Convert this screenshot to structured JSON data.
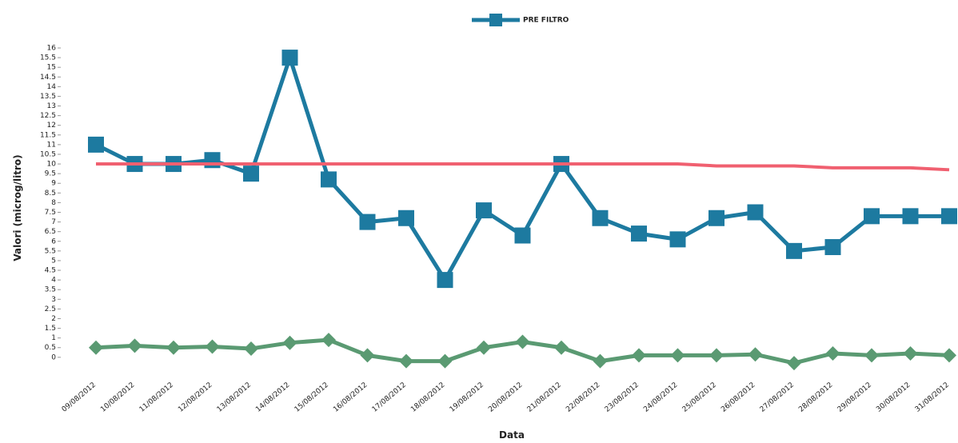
{
  "chart_data": {
    "type": "line",
    "x_label": "Data",
    "y_label": "Valori (microg/litro)",
    "categories": [
      "09/08/2012",
      "10/08/2012",
      "11/08/2012",
      "12/08/2012",
      "13/08/2012",
      "14/08/2012",
      "15/08/2012",
      "16/08/2012",
      "17/08/2012",
      "18/08/2012",
      "19/08/2012",
      "20/08/2012",
      "21/08/2012",
      "22/08/2012",
      "23/08/2012",
      "24/08/2012",
      "25/08/2012",
      "26/08/2012",
      "27/08/2012",
      "28/08/2012",
      "29/08/2012",
      "30/08/2012",
      "31/08/2012"
    ],
    "series": [
      {
        "name": "PRE FILTRO",
        "color": "#1d7aa0",
        "marker": "square",
        "values": [
          11,
          10,
          10,
          10.2,
          9.5,
          15.5,
          9.2,
          7,
          7.2,
          4,
          7.6,
          6.3,
          10,
          7.2,
          6.4,
          6.1,
          7.2,
          7.5,
          5.5,
          5.7,
          7.3,
          7.3,
          7.3
        ]
      },
      {
        "color": "#f06070",
        "marker": "none",
        "values": [
          10,
          10,
          10,
          10,
          10,
          10,
          10,
          10,
          10,
          10,
          10,
          10,
          10,
          10,
          10,
          10,
          9.9,
          9.9,
          9.9,
          9.8,
          9.8,
          9.8,
          9.7
        ]
      },
      {
        "color": "#5a9a72",
        "marker": "diamond",
        "values": [
          0.5,
          0.6,
          0.5,
          0.55,
          0.45,
          0.75,
          0.9,
          0.1,
          -0.2,
          -0.2,
          0.5,
          0.8,
          0.5,
          -0.2,
          0.1,
          0.1,
          0.1,
          0.15,
          -0.3,
          0.2,
          0.1,
          0.2,
          0.1
        ]
      }
    ],
    "ylim": [
      -1,
      16
    ],
    "yticks": [
      0,
      0.5,
      1,
      1.5,
      2,
      2.5,
      3,
      3.5,
      4,
      4.5,
      5,
      5.5,
      6,
      6.5,
      7,
      7.5,
      8,
      8.5,
      9,
      9.5,
      10,
      10.5,
      11,
      11.5,
      12,
      12.5,
      13,
      13.5,
      14,
      14.5,
      15,
      15.5,
      16
    ],
    "grid": false
  }
}
